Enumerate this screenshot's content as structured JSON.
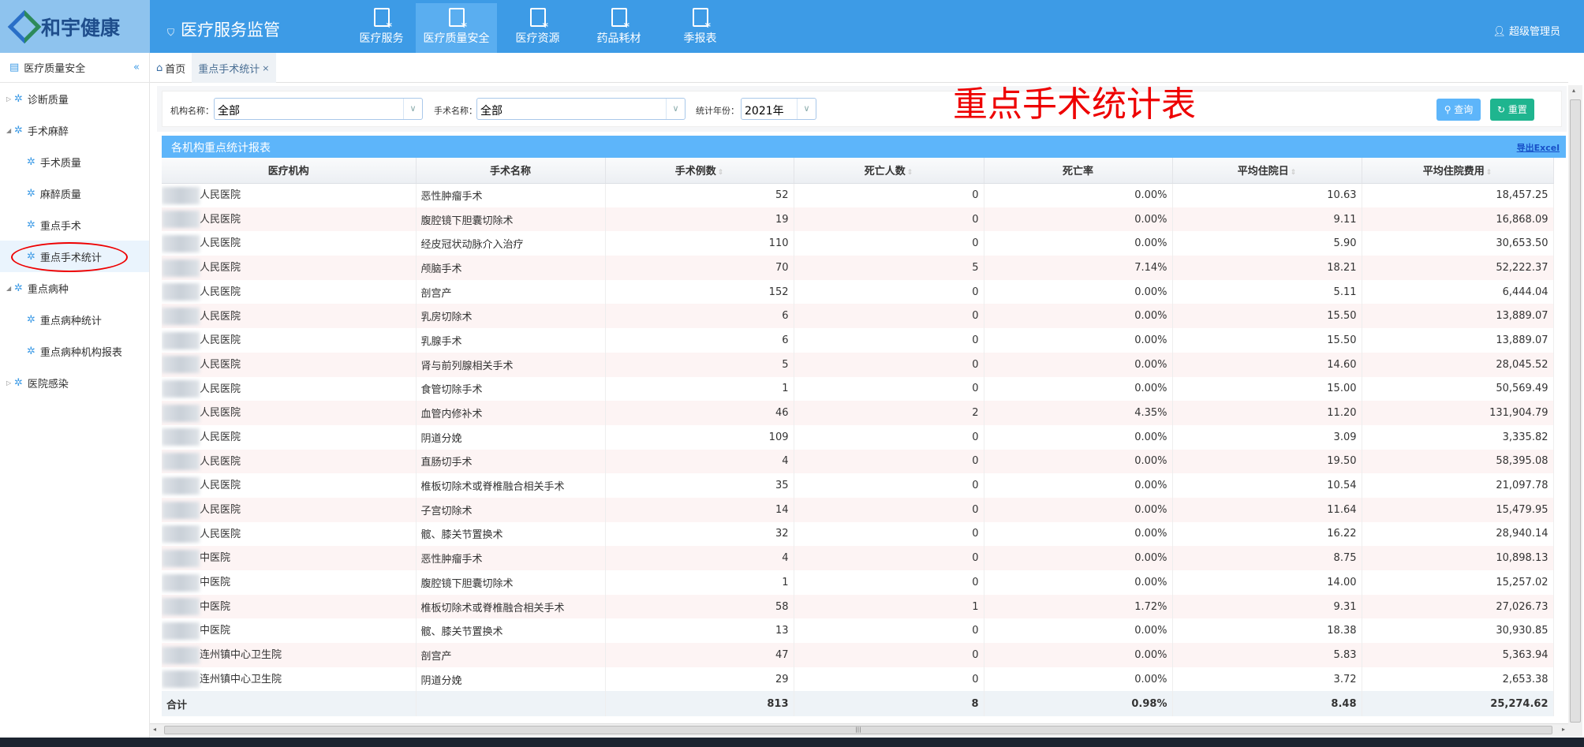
{
  "header": {
    "logo_text": "和宇健康",
    "system_title": "医疗服务监管",
    "nav": [
      "医疗服务",
      "医疗质量安全",
      "医疗资源",
      "药品耗材",
      "季报表"
    ],
    "active_nav": 1,
    "user": "超级管理员"
  },
  "sidebar": {
    "title": "医疗质量安全",
    "items": [
      {
        "label": "诊断质量",
        "level": 0,
        "expanded": false
      },
      {
        "label": "手术麻醉",
        "level": 0,
        "expanded": true
      },
      {
        "label": "手术质量",
        "level": 1
      },
      {
        "label": "麻醉质量",
        "level": 1
      },
      {
        "label": "重点手术",
        "level": 1
      },
      {
        "label": "重点手术统计",
        "level": 1,
        "selected": true
      },
      {
        "label": "重点病种",
        "level": 0,
        "expanded": true
      },
      {
        "label": "重点病种统计",
        "level": 1
      },
      {
        "label": "重点病种机构报表",
        "level": 1
      },
      {
        "label": "医院感染",
        "level": 0,
        "expanded": false
      }
    ]
  },
  "tabs": {
    "home": "首页",
    "current": "重点手术统计",
    "close": "×"
  },
  "filter": {
    "org_label": "机构名称：",
    "org_value": "全部",
    "op_label": "手术名称：",
    "op_value": "全部",
    "year_label": "统计年份：",
    "year_value": "2021年",
    "query": "查询",
    "reset": "重置"
  },
  "heading": "重点手术统计表",
  "panel": {
    "title": "各机构重点统计报表",
    "export": "导出Excel"
  },
  "table": {
    "columns": [
      "医疗机构",
      "手术名称",
      "手术例数",
      "死亡人数",
      "死亡率",
      "平均住院日",
      "平均住院费用"
    ],
    "rows": [
      [
        "人民医院",
        "恶性肿瘤手术",
        "52",
        "0",
        "0.00%",
        "10.63",
        "18,457.25"
      ],
      [
        "人民医院",
        "腹腔镜下胆囊切除术",
        "19",
        "0",
        "0.00%",
        "9.11",
        "16,868.09"
      ],
      [
        "人民医院",
        "经皮冠状动脉介入治疗",
        "110",
        "0",
        "0.00%",
        "5.90",
        "30,653.50"
      ],
      [
        "人民医院",
        "颅脑手术",
        "70",
        "5",
        "7.14%",
        "18.21",
        "52,222.37"
      ],
      [
        "人民医院",
        "剖宫产",
        "152",
        "0",
        "0.00%",
        "5.11",
        "6,444.04"
      ],
      [
        "人民医院",
        "乳房切除术",
        "6",
        "0",
        "0.00%",
        "15.50",
        "13,889.07"
      ],
      [
        "人民医院",
        "乳腺手术",
        "6",
        "0",
        "0.00%",
        "15.50",
        "13,889.07"
      ],
      [
        "人民医院",
        "肾与前列腺相关手术",
        "5",
        "0",
        "0.00%",
        "14.60",
        "28,045.52"
      ],
      [
        "人民医院",
        "食管切除手术",
        "1",
        "0",
        "0.00%",
        "15.00",
        "50,569.49"
      ],
      [
        "人民医院",
        "血管内修补术",
        "46",
        "2",
        "4.35%",
        "11.20",
        "131,904.79"
      ],
      [
        "人民医院",
        "阴道分娩",
        "109",
        "0",
        "0.00%",
        "3.09",
        "3,335.82"
      ],
      [
        "人民医院",
        "直肠切手术",
        "4",
        "0",
        "0.00%",
        "19.50",
        "58,395.08"
      ],
      [
        "人民医院",
        "椎板切除术或脊椎融合相关手术",
        "35",
        "0",
        "0.00%",
        "10.54",
        "21,097.78"
      ],
      [
        "人民医院",
        "子宫切除术",
        "14",
        "0",
        "0.00%",
        "11.64",
        "15,479.95"
      ],
      [
        "人民医院",
        "髋、膝关节置换术",
        "32",
        "0",
        "0.00%",
        "16.22",
        "28,940.14"
      ],
      [
        "中医院",
        "恶性肿瘤手术",
        "4",
        "0",
        "0.00%",
        "8.75",
        "10,898.13"
      ],
      [
        "中医院",
        "腹腔镜下胆囊切除术",
        "1",
        "0",
        "0.00%",
        "14.00",
        "15,257.02"
      ],
      [
        "中医院",
        "椎板切除术或脊椎融合相关手术",
        "58",
        "1",
        "1.72%",
        "9.31",
        "27,026.73"
      ],
      [
        "中医院",
        "髋、膝关节置换术",
        "13",
        "0",
        "0.00%",
        "18.38",
        "30,930.85"
      ],
      [
        "连州镇中心卫生院",
        "剖宫产",
        "47",
        "0",
        "0.00%",
        "5.83",
        "5,363.94"
      ],
      [
        "连州镇中心卫生院",
        "阴道分娩",
        "29",
        "0",
        "0.00%",
        "3.72",
        "2,653.38"
      ]
    ],
    "total": [
      "合计",
      "",
      "813",
      "8",
      "0.98%",
      "8.48",
      "25,274.62"
    ]
  },
  "colors": {
    "header": "#3d9be6",
    "panel_header": "#5db5fa",
    "query_button": "#5db5fa",
    "reset_button": "#1fb58f",
    "heading": "#e00000"
  }
}
